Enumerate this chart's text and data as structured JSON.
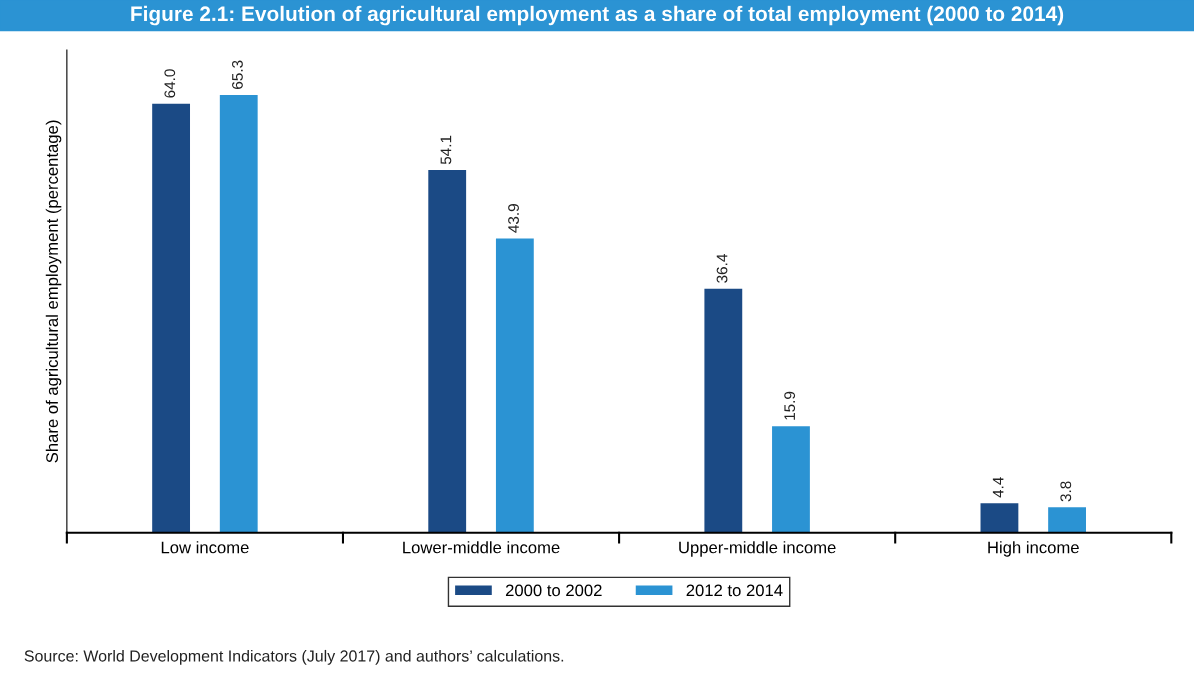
{
  "chart_data": {
    "type": "bar",
    "title": "Figure 2.1: Evolution of agricultural employment as a share of total employment (2000 to 2014)",
    "ylabel": "Share of agricultural employment (percentage)",
    "categories": [
      "Low income",
      "Lower-middle income",
      "Upper-middle income",
      "High income"
    ],
    "series": [
      {
        "name": "2000 to 2002",
        "color": "#1b4a85",
        "values": [
          64.0,
          54.1,
          36.4,
          4.4
        ],
        "value_labels": [
          "64.0",
          "54.1",
          "36.4",
          "4.4"
        ]
      },
      {
        "name": "2012 to 2014",
        "color": "#2b93d3",
        "values": [
          65.3,
          43.9,
          15.9,
          3.8
        ],
        "value_labels": [
          "65.3",
          "43.9",
          "15.9",
          "3.8"
        ]
      }
    ],
    "ylim": [
      0,
      72
    ],
    "tick_labels": "x",
    "grid": false,
    "legend": "bottom",
    "annotations": [
      "Source: World Development Indicators (July 2017) and authors’ calculations."
    ]
  }
}
